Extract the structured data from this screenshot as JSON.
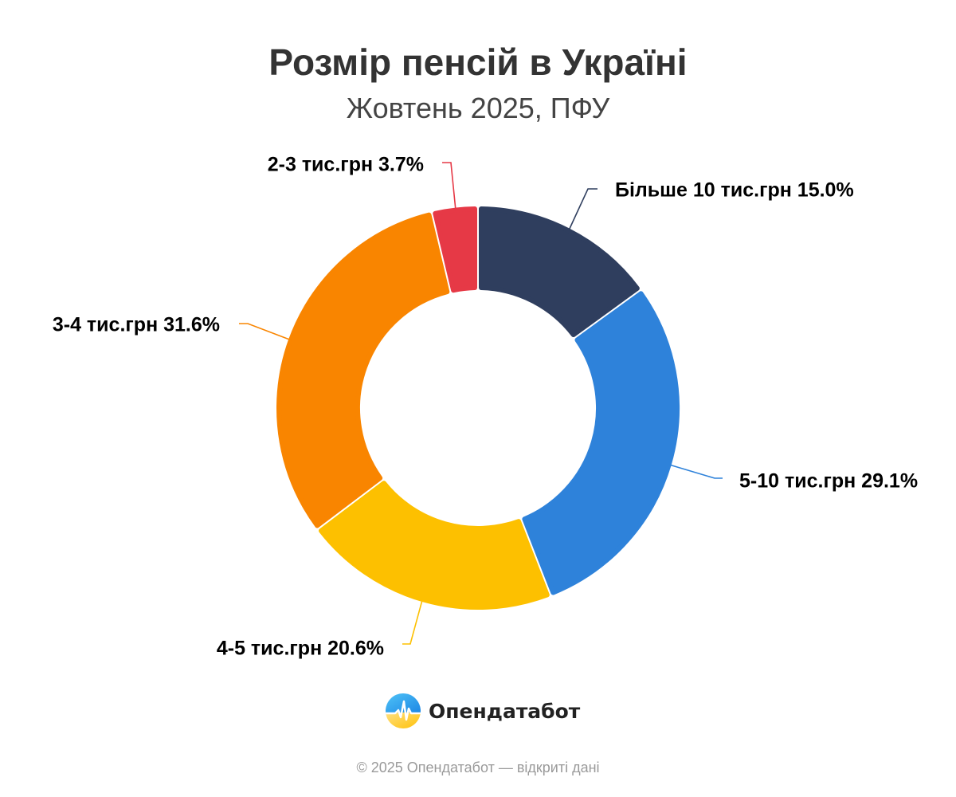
{
  "header": {
    "title": "Розмір пенсій в Україні",
    "subtitle": "Жовтень 2025, ПФУ"
  },
  "chart_data": {
    "type": "pie",
    "donut": true,
    "legend": "none",
    "slices": [
      {
        "label": "Більше 10 тис.грн",
        "value": 15.0,
        "display": "Більше 10 тис.грн 15.0%",
        "color": "#2f3e5e"
      },
      {
        "label": "5-10 тис.грн",
        "value": 29.1,
        "display": "5-10 тис.грн 29.1%",
        "color": "#2e82da"
      },
      {
        "label": "4-5 тис.грн",
        "value": 20.6,
        "display": "4-5 тис.грн 20.6%",
        "color": "#fdc000"
      },
      {
        "label": "3-4 тис.грн",
        "value": 31.6,
        "display": "3-4 тис.грн 31.6%",
        "color": "#f98500"
      },
      {
        "label": "2-3 тис.грн",
        "value": 3.7,
        "display": "2-3 тис.грн 3.7%",
        "color": "#e63946"
      }
    ]
  },
  "brand": {
    "name": "Опендатабот",
    "logo_icon": "opendatabot-logo-icon"
  },
  "footer": {
    "text": "© 2025 Опендатабот — відкриті дані"
  }
}
